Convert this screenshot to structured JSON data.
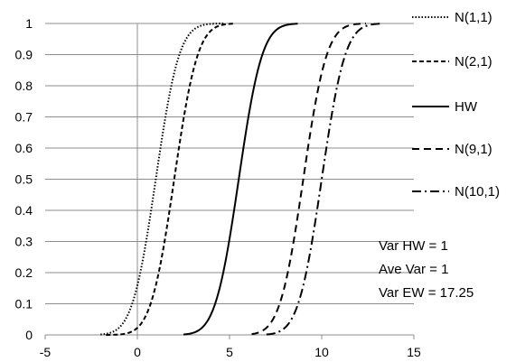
{
  "chart_data": {
    "type": "line",
    "title": "",
    "xlabel": "",
    "ylabel": "",
    "xlim": [
      -5,
      15
    ],
    "ylim": [
      0,
      1
    ],
    "x_ticks": [
      "-5",
      "0",
      "5",
      "10",
      "15"
    ],
    "y_ticks": [
      "0",
      "0.1",
      "0.2",
      "0.3",
      "0.4",
      "0.5",
      "0.6",
      "0.7",
      "0.8",
      "0.9",
      "1"
    ],
    "grid": "horizontal",
    "legend_position": "right",
    "series": [
      {
        "name": "N(1,1)",
        "dist": "normal_cdf",
        "mean": 1,
        "sd": 1,
        "x_range": [
          -2,
          4.7
        ],
        "style": "dotted",
        "color": "#000000"
      },
      {
        "name": "N(2,1)",
        "dist": "normal_cdf",
        "mean": 2,
        "sd": 1,
        "x_range": [
          -1.7,
          5.3
        ],
        "style": "dashed",
        "color": "#000000"
      },
      {
        "name": "HW",
        "dist": "normal_cdf",
        "mean": 5.5,
        "sd": 1,
        "x_range": [
          2.5,
          8.7
        ],
        "style": "solid",
        "color": "#000000"
      },
      {
        "name": "N(9,1)",
        "dist": "normal_cdf",
        "mean": 9,
        "sd": 1,
        "x_range": [
          6.2,
          12.4
        ],
        "style": "long-dash",
        "color": "#000000"
      },
      {
        "name": "N(10,1)",
        "dist": "normal_cdf",
        "mean": 10,
        "sd": 1,
        "x_range": [
          7.0,
          13.2
        ],
        "style": "dash-dot",
        "color": "#000000"
      }
    ],
    "annotations": [
      "Var HW = 1",
      "Ave Var = 1",
      "Var EW = 17.25"
    ]
  }
}
